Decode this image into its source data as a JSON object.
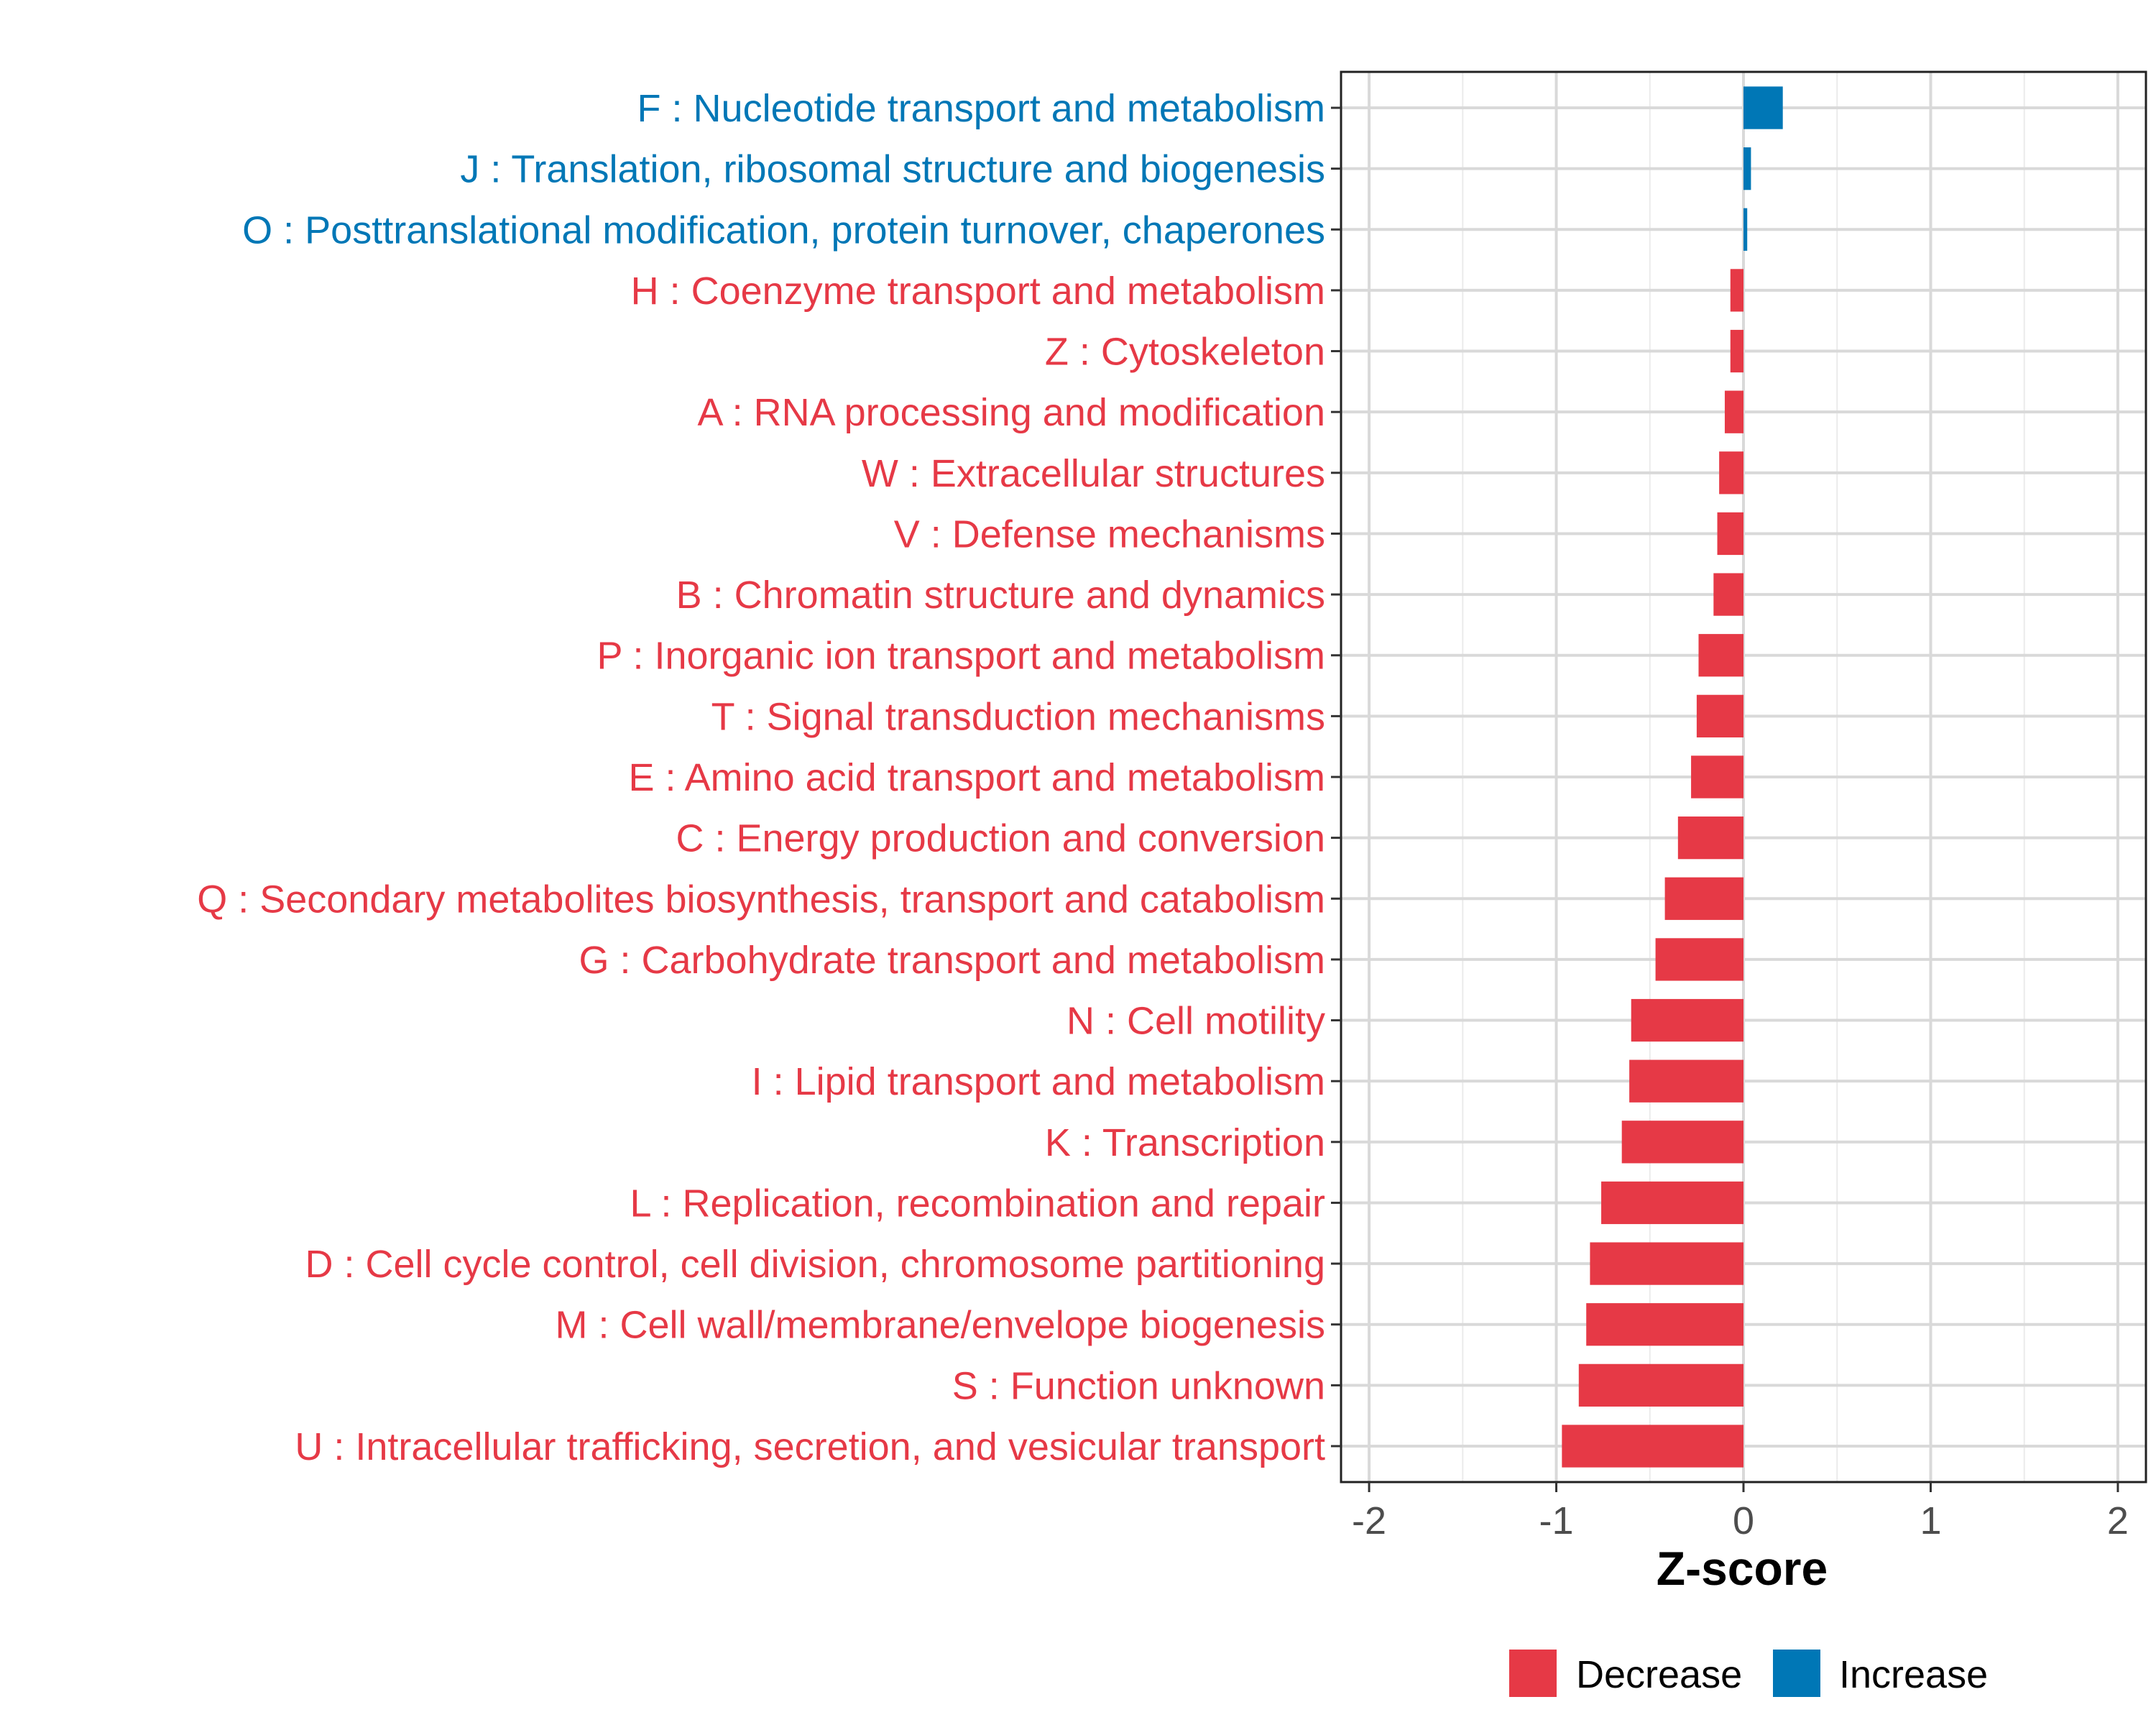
{
  "chart_data": {
    "type": "bar",
    "orientation": "horizontal",
    "xlabel": "Z-score",
    "ylabel": "",
    "xlim": [
      -2.15,
      2.15
    ],
    "xticks": [
      -2,
      -1,
      0,
      1,
      2
    ],
    "xtick_labels": [
      "-2",
      "-1",
      "0",
      "1",
      "2"
    ],
    "grid": true,
    "legend": {
      "placement": "bottom",
      "entries": [
        {
          "label": "Decrease",
          "color": "#E63946"
        },
        {
          "label": "Increase",
          "color": "#0077B6"
        }
      ]
    },
    "colors": {
      "Decrease": "#E63946",
      "Increase": "#0077B6"
    },
    "categories": [
      "F : Nucleotide transport and metabolism",
      "J : Translation, ribosomal structure and biogenesis",
      "O : Posttranslational modification, protein turnover, chaperones",
      "H : Coenzyme transport and metabolism",
      "Z : Cytoskeleton",
      "A : RNA processing and modification",
      "W : Extracellular structures",
      "V : Defense mechanisms",
      "B : Chromatin structure and dynamics",
      "P : Inorganic ion transport and metabolism",
      "T : Signal transduction mechanisms",
      "E : Amino acid transport and metabolism",
      "C : Energy production and conversion",
      "Q : Secondary metabolites biosynthesis, transport and catabolism",
      "G : Carbohydrate transport and metabolism",
      "N : Cell motility",
      "I : Lipid transport and metabolism",
      "K : Transcription",
      "L : Replication, recombination and repair",
      "D : Cell cycle control, cell division, chromosome partitioning",
      "M : Cell wall/membrane/envelope biogenesis",
      "S : Function unknown",
      "U : Intracellular trafficking, secretion, and vesicular transport"
    ],
    "values": [
      0.21,
      0.04,
      0.02,
      -0.07,
      -0.07,
      -0.1,
      -0.13,
      -0.14,
      -0.16,
      -0.24,
      -0.25,
      -0.28,
      -0.35,
      -0.42,
      -0.47,
      -0.6,
      -0.61,
      -0.65,
      -0.76,
      -0.82,
      -0.84,
      -0.88,
      -0.97
    ],
    "groups": [
      "Increase",
      "Increase",
      "Increase",
      "Decrease",
      "Decrease",
      "Decrease",
      "Decrease",
      "Decrease",
      "Decrease",
      "Decrease",
      "Decrease",
      "Decrease",
      "Decrease",
      "Decrease",
      "Decrease",
      "Decrease",
      "Decrease",
      "Decrease",
      "Decrease",
      "Decrease",
      "Decrease",
      "Decrease",
      "Decrease"
    ]
  }
}
